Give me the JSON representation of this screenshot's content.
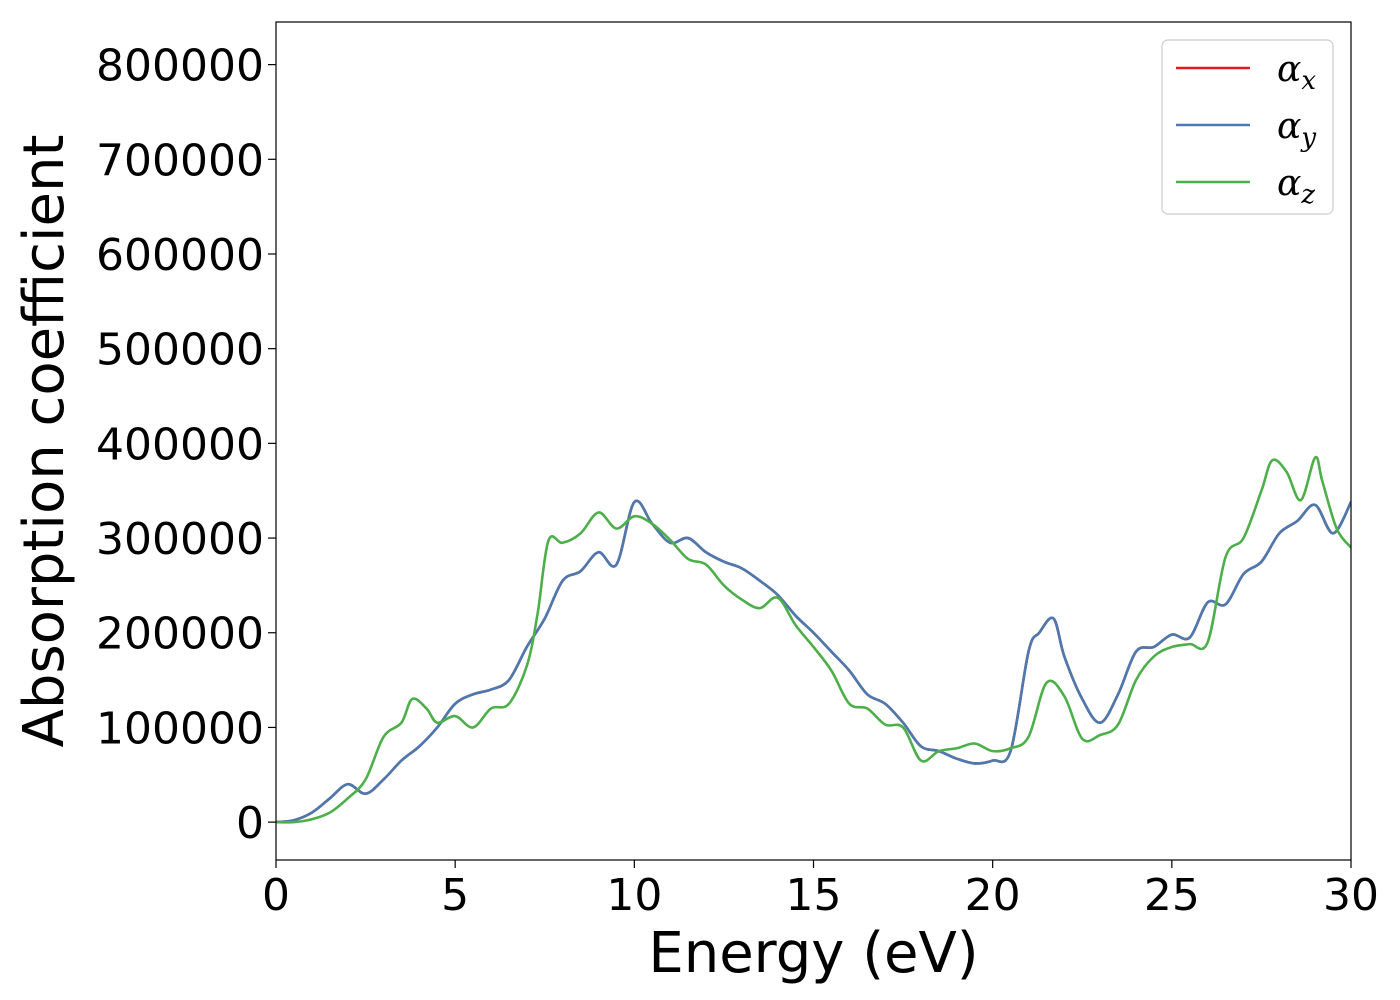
{
  "chart_data": {
    "type": "line",
    "title": "",
    "xlabel": "Energy (eV)",
    "ylabel": "Absorption coefficient",
    "xlim": [
      0,
      30
    ],
    "ylim": [
      -40000,
      845000
    ],
    "x_ticks": [
      0,
      5,
      10,
      15,
      20,
      25,
      30
    ],
    "x_tick_labels": [
      "0",
      "5",
      "10",
      "15",
      "20",
      "25",
      "30"
    ],
    "y_ticks": [
      0,
      100000,
      200000,
      300000,
      400000,
      500000,
      600000,
      700000,
      800000
    ],
    "y_tick_labels": [
      "0",
      "100000",
      "200000",
      "300000",
      "400000",
      "500000",
      "600000",
      "700000",
      "800000"
    ],
    "grid": false,
    "legend_position": "top-right",
    "series": [
      {
        "name": "αx",
        "symbol": "α",
        "subscript": "x",
        "color": "#e41a1c",
        "x": [
          0,
          0.5,
          1.0,
          1.5,
          2.0,
          2.5,
          3.0,
          3.5,
          4.0,
          4.5,
          5.0,
          5.5,
          6.0,
          6.5,
          7.0,
          7.5,
          8.0,
          8.5,
          9.0,
          9.5,
          10.0,
          10.5,
          11.0,
          11.5,
          12.0,
          12.5,
          13.0,
          13.5,
          14.0,
          14.5,
          15.0,
          15.5,
          16.0,
          16.5,
          17.0,
          17.5,
          18.0,
          18.5,
          19.0,
          19.5,
          20.0,
          20.5,
          21.0,
          21.3,
          21.7,
          22.0,
          22.5,
          23.0,
          23.5,
          24.0,
          24.5,
          25.0,
          25.5,
          26.0,
          26.5,
          27.0,
          27.5,
          28.0,
          28.5,
          29.0,
          29.5,
          30.0
        ],
        "y": [
          0,
          2000,
          10000,
          25000,
          40000,
          30000,
          45000,
          65000,
          80000,
          100000,
          125000,
          135000,
          140000,
          150000,
          185000,
          215000,
          255000,
          265000,
          285000,
          272000,
          338000,
          315000,
          295000,
          300000,
          285000,
          275000,
          268000,
          255000,
          240000,
          218000,
          200000,
          180000,
          160000,
          135000,
          125000,
          105000,
          80000,
          75000,
          67000,
          62000,
          65000,
          75000,
          180000,
          200000,
          215000,
          175000,
          130000,
          105000,
          135000,
          180000,
          185000,
          198000,
          195000,
          232000,
          230000,
          262000,
          275000,
          305000,
          318000,
          335000,
          305000,
          338000
        ]
      },
      {
        "name": "αy",
        "symbol": "α",
        "subscript": "y",
        "color": "#4a7ab0",
        "x": [
          0,
          0.5,
          1.0,
          1.5,
          2.0,
          2.5,
          3.0,
          3.5,
          4.0,
          4.5,
          5.0,
          5.5,
          6.0,
          6.5,
          7.0,
          7.5,
          8.0,
          8.5,
          9.0,
          9.5,
          10.0,
          10.5,
          11.0,
          11.5,
          12.0,
          12.5,
          13.0,
          13.5,
          14.0,
          14.5,
          15.0,
          15.5,
          16.0,
          16.5,
          17.0,
          17.5,
          18.0,
          18.5,
          19.0,
          19.5,
          20.0,
          20.5,
          21.0,
          21.3,
          21.7,
          22.0,
          22.5,
          23.0,
          23.5,
          24.0,
          24.5,
          25.0,
          25.5,
          26.0,
          26.5,
          27.0,
          27.5,
          28.0,
          28.5,
          29.0,
          29.5,
          30.0
        ],
        "y": [
          0,
          2000,
          10000,
          25000,
          40000,
          30000,
          45000,
          65000,
          80000,
          100000,
          125000,
          135000,
          140000,
          150000,
          185000,
          215000,
          255000,
          265000,
          285000,
          272000,
          338000,
          315000,
          295000,
          300000,
          285000,
          275000,
          268000,
          255000,
          240000,
          218000,
          200000,
          180000,
          160000,
          135000,
          125000,
          105000,
          80000,
          75000,
          67000,
          62000,
          65000,
          75000,
          180000,
          200000,
          215000,
          175000,
          130000,
          105000,
          135000,
          180000,
          185000,
          198000,
          195000,
          232000,
          230000,
          262000,
          275000,
          305000,
          318000,
          335000,
          305000,
          338000
        ]
      },
      {
        "name": "αz",
        "symbol": "α",
        "subscript": "z",
        "color": "#4daf4a",
        "x": [
          0,
          0.5,
          1.0,
          1.5,
          2.0,
          2.5,
          3.0,
          3.5,
          3.8,
          4.2,
          4.5,
          5.0,
          5.5,
          6.0,
          6.5,
          7.0,
          7.3,
          7.6,
          8.0,
          8.5,
          9.0,
          9.5,
          10.0,
          10.5,
          11.0,
          11.5,
          12.0,
          12.5,
          13.0,
          13.5,
          14.0,
          14.5,
          15.0,
          15.5,
          16.0,
          16.5,
          17.0,
          17.5,
          18.0,
          18.5,
          19.0,
          19.5,
          20.0,
          20.5,
          21.0,
          21.5,
          22.0,
          22.5,
          23.0,
          23.5,
          24.0,
          24.5,
          25.0,
          25.5,
          26.0,
          26.5,
          27.0,
          27.5,
          27.8,
          28.2,
          28.6,
          29.0,
          29.2,
          29.6,
          30.0
        ],
        "y": [
          0,
          0,
          3000,
          10000,
          25000,
          45000,
          90000,
          105000,
          130000,
          120000,
          105000,
          112000,
          100000,
          120000,
          125000,
          165000,
          220000,
          297000,
          295000,
          305000,
          327000,
          310000,
          323000,
          315000,
          298000,
          278000,
          272000,
          250000,
          235000,
          226000,
          237000,
          208000,
          185000,
          160000,
          125000,
          120000,
          103000,
          100000,
          65000,
          75000,
          78000,
          83000,
          75000,
          78000,
          90000,
          147000,
          133000,
          88000,
          92000,
          103000,
          150000,
          175000,
          185000,
          188000,
          190000,
          280000,
          300000,
          350000,
          382000,
          370000,
          340000,
          385000,
          360000,
          310000,
          290000
        ]
      }
    ]
  }
}
